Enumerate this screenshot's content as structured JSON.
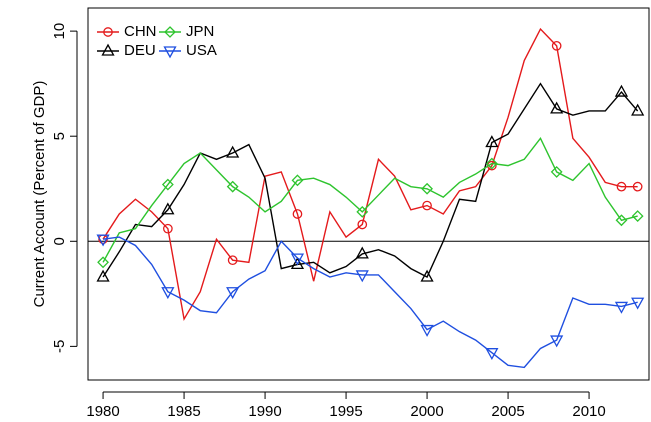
{
  "chart_data": {
    "type": "line",
    "y_label": "Current Account (Percent of GDP)",
    "x": [
      1980,
      1981,
      1982,
      1983,
      1984,
      1985,
      1986,
      1987,
      1988,
      1989,
      1990,
      1991,
      1992,
      1993,
      1994,
      1995,
      1996,
      1997,
      1998,
      1999,
      2000,
      2001,
      2002,
      2003,
      2004,
      2005,
      2006,
      2007,
      2008,
      2009,
      2010,
      2011,
      2012,
      2013
    ],
    "series": [
      {
        "name": "CHN",
        "color": "#e41a1c",
        "marker": "circle",
        "values": [
          0.1,
          1.3,
          2.0,
          1.4,
          0.6,
          -3.7,
          -2.4,
          0.1,
          -0.9,
          -1.0,
          3.1,
          3.3,
          1.3,
          -1.9,
          1.4,
          0.2,
          0.8,
          3.9,
          3.1,
          1.5,
          1.7,
          1.3,
          2.4,
          2.6,
          3.6,
          5.9,
          8.6,
          10.1,
          9.3,
          4.9,
          4.0,
          2.8,
          2.6,
          2.6
        ]
      },
      {
        "name": "DEU",
        "color": "#000000",
        "marker": "triangle-up",
        "values": [
          -1.7,
          -0.5,
          0.8,
          0.7,
          1.5,
          2.7,
          4.2,
          3.9,
          4.2,
          4.6,
          3.0,
          -1.3,
          -1.1,
          -1.0,
          -1.5,
          -1.2,
          -0.6,
          -0.4,
          -0.7,
          -1.3,
          -1.7,
          0.0,
          2.0,
          1.9,
          4.7,
          5.1,
          6.3,
          7.5,
          6.3,
          6.0,
          6.2,
          6.2,
          7.1,
          6.2
        ]
      },
      {
        "name": "JPN",
        "color": "#2ec42e",
        "marker": "diamond",
        "values": [
          -1.0,
          0.4,
          0.6,
          1.7,
          2.7,
          3.7,
          4.2,
          3.4,
          2.6,
          2.1,
          1.4,
          1.9,
          2.9,
          3.0,
          2.7,
          2.1,
          1.4,
          2.2,
          3.0,
          2.6,
          2.5,
          2.1,
          2.8,
          3.2,
          3.7,
          3.6,
          3.9,
          4.9,
          3.3,
          2.9,
          3.7,
          2.1,
          1.0,
          1.2
        ]
      },
      {
        "name": "USA",
        "color": "#1f4fe0",
        "marker": "triangle-down",
        "values": [
          0.1,
          0.2,
          -0.2,
          -1.1,
          -2.4,
          -2.8,
          -3.3,
          -3.4,
          -2.4,
          -1.8,
          -1.4,
          0.0,
          -0.8,
          -1.3,
          -1.7,
          -1.5,
          -1.6,
          -1.6,
          -2.4,
          -3.2,
          -4.2,
          -3.8,
          -4.3,
          -4.7,
          -5.3,
          -5.9,
          -6.0,
          -5.1,
          -4.7,
          -2.7,
          -3.0,
          -3.0,
          -3.1,
          -2.9
        ]
      }
    ],
    "xlim": [
      1979.07,
      2013.7
    ],
    "xticks": [
      1980,
      1985,
      1990,
      1995,
      2000,
      2005,
      2010
    ],
    "ylim": [
      -6.6,
      11.1
    ],
    "yticks": [
      -5,
      0,
      5,
      10
    ],
    "hline": 0,
    "legend": "top-left"
  }
}
